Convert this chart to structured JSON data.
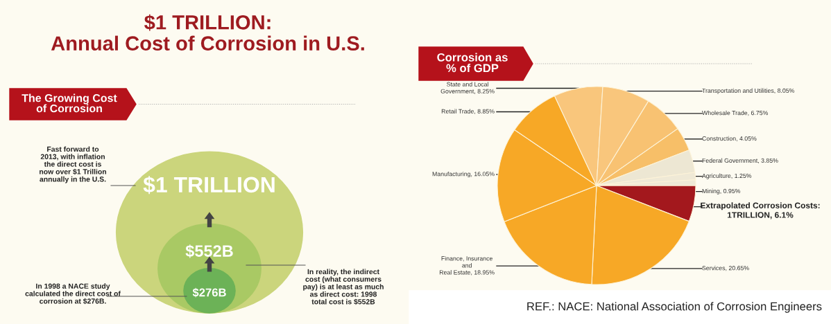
{
  "chart_data": [
    {
      "type": "other",
      "title": "$1 TRILLION:\nAnnual Cost of Corrosion in U.S.",
      "subtitle": "The Growing Cost\nof Corrosion",
      "annotations": [
        "$276B",
        "$552B",
        "$1 TRILLION",
        "In 1998 a NACE study\ncalculated the direct cost of\ncorrosion at $276B.",
        "In reality, the indirect\ncost (what consumers\npay) is at least as much\nas direct cost: 1998\ntotal cost is $552B",
        "Fast forward to\n2013, with inflation\nthe direct cost is\nnow over $1 Trillion\nannually in the U.S."
      ]
    },
    {
      "type": "pie",
      "title": "Corrosion as\n% of GDP",
      "categories": [
        "Extrapolated Corrosion Costs:\n1TRILLION, 6.1%",
        "Services, 20.65%",
        "Finance, Insurance\nand\nReal Estate, 18.95%",
        "Manufacturing, 16.05%",
        "Retail Trade, 8.85%",
        "State and Local\nGovernment, 8.25%",
        "Transportation and Utilities, 8.05%",
        "Wholesale Trade, 6.75%",
        "Construction, 4.05%",
        "Federal Government, 3.85%",
        "Agriculture, 1.25%",
        "Mining, 0.95%"
      ],
      "values": [
        6.1,
        20.65,
        18.95,
        16.05,
        8.85,
        8.25,
        8.05,
        6.75,
        4.05,
        3.85,
        1.25,
        0.95
      ],
      "colors": [
        "#a3181d",
        "#f7a826",
        "#f7a826",
        "#f7a826",
        "#f7a826",
        "#f9c67c",
        "#f9c67c",
        "#f8c272",
        "#f7bf68",
        "#ede7d3",
        "#efe9d6",
        "#efe9d6"
      ],
      "annotations": [
        "REF.: NACE: National Association of Corrosion Engineers"
      ]
    }
  ]
}
